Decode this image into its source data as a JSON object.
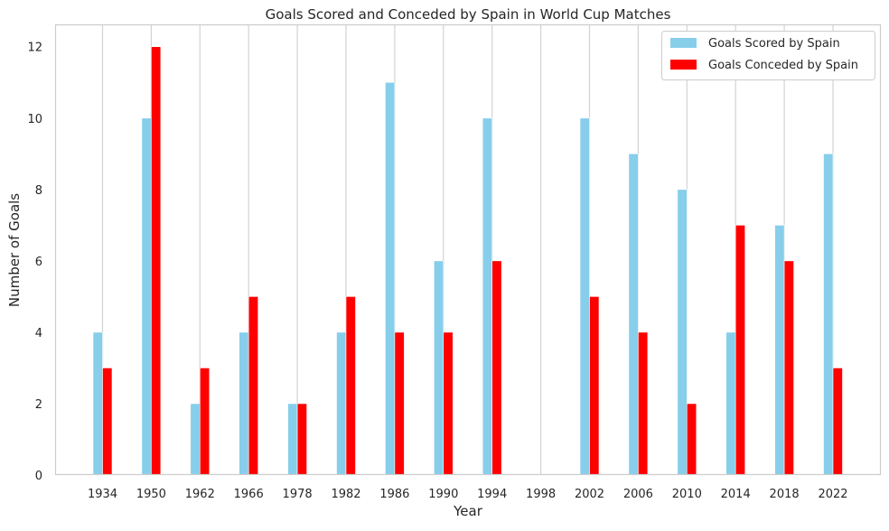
{
  "chart_data": {
    "type": "bar",
    "title": "Goals Scored and Conceded by Spain in World Cup Matches",
    "xlabel": "Year",
    "ylabel": "Number of Goals",
    "categories": [
      "1934",
      "1950",
      "1962",
      "1966",
      "1978",
      "1982",
      "1986",
      "1990",
      "1994",
      "1998",
      "2002",
      "2006",
      "2010",
      "2014",
      "2018",
      "2022"
    ],
    "series": [
      {
        "name": "Goals Scored by Spain",
        "color": "#87ceeb",
        "values": [
          4,
          10,
          2,
          4,
          2,
          4,
          11,
          6,
          10,
          0,
          10,
          9,
          8,
          4,
          7,
          9
        ]
      },
      {
        "name": "Goals Conceded by Spain",
        "color": "#ff0000",
        "values": [
          3,
          12,
          3,
          5,
          2,
          5,
          4,
          4,
          6,
          0,
          5,
          4,
          2,
          7,
          6,
          3
        ]
      }
    ],
    "ylim": [
      0,
      12.6
    ],
    "yticks": [
      "0",
      "2",
      "4",
      "6",
      "8",
      "10",
      "12"
    ],
    "grid": "vertical",
    "legend_position": "top-right"
  }
}
